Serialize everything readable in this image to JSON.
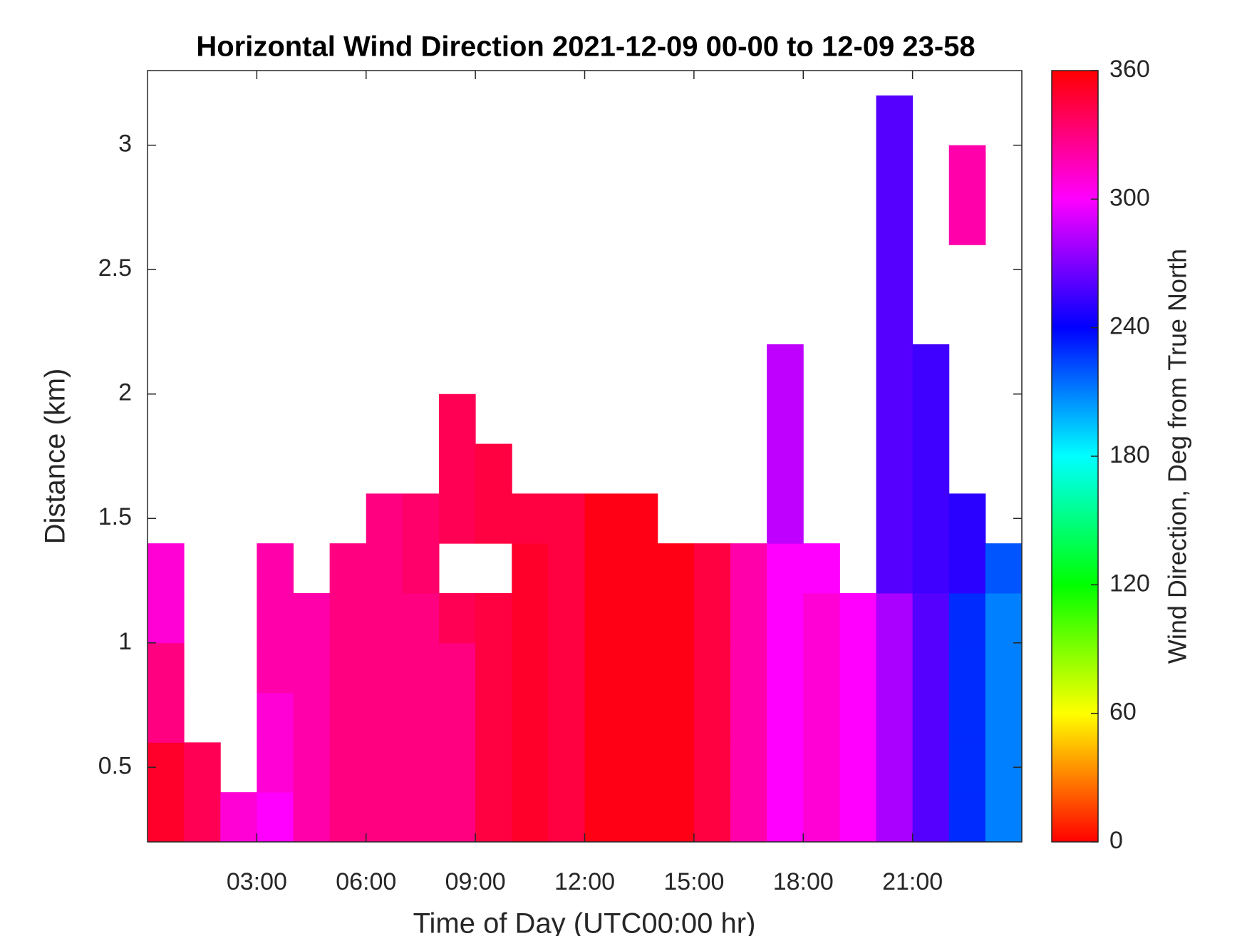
{
  "chart_data": {
    "type": "heatmap",
    "title": "Horizontal Wind Direction 2021-12-09 00-00 to 12-09 23-58",
    "x_label": "Time of Day (UTC00:00 hr)",
    "y_label": "Distance (km)",
    "colorbar_label": "Wind Direction, Deg from True North",
    "colormap": "hsv",
    "xlim": [
      0,
      24
    ],
    "ylim": [
      0.2,
      3.3
    ],
    "clim": [
      0,
      360
    ],
    "xticks": [
      {
        "value": 3,
        "label": "03:00"
      },
      {
        "value": 6,
        "label": "06:00"
      },
      {
        "value": 9,
        "label": "09:00"
      },
      {
        "value": 12,
        "label": "12:00"
      },
      {
        "value": 15,
        "label": "15:00"
      },
      {
        "value": 18,
        "label": "18:00"
      },
      {
        "value": 21,
        "label": "21:00"
      }
    ],
    "yticks": [
      0.5,
      1,
      1.5,
      2,
      2.5,
      3
    ],
    "cticks": [
      0,
      60,
      120,
      180,
      240,
      300,
      360
    ],
    "xbins": [
      0,
      1,
      2,
      3,
      4,
      5,
      6,
      7,
      8,
      9,
      10,
      11,
      12,
      13,
      14,
      15,
      16,
      17,
      18,
      19,
      20,
      21,
      22,
      23,
      24
    ],
    "ybins": [
      0.2,
      0.4,
      0.6,
      0.8,
      1.0,
      1.2,
      1.4,
      1.6,
      1.8,
      2.0,
      2.2,
      2.4,
      2.6,
      2.8,
      3.0,
      3.2,
      3.3
    ],
    "values": [
      [
        350,
        340,
        310,
        300,
        320,
        330,
        330,
        330,
        330,
        345,
        350,
        345,
        355,
        355,
        355,
        345,
        320,
        300,
        310,
        300,
        280,
        260,
        230,
        210
      ],
      [
        350,
        340,
        null,
        310,
        320,
        330,
        330,
        330,
        330,
        345,
        350,
        345,
        355,
        355,
        355,
        345,
        320,
        300,
        310,
        300,
        280,
        260,
        230,
        210
      ],
      [
        330,
        null,
        null,
        310,
        320,
        330,
        330,
        330,
        330,
        345,
        350,
        345,
        355,
        355,
        355,
        345,
        320,
        300,
        310,
        300,
        280,
        260,
        230,
        210
      ],
      [
        330,
        null,
        null,
        320,
        320,
        330,
        330,
        330,
        330,
        345,
        350,
        345,
        355,
        355,
        355,
        345,
        320,
        300,
        310,
        300,
        280,
        260,
        230,
        210
      ],
      [
        310,
        null,
        null,
        320,
        320,
        330,
        330,
        330,
        340,
        345,
        350,
        345,
        355,
        355,
        355,
        345,
        320,
        300,
        310,
        300,
        280,
        260,
        230,
        210
      ],
      [
        310,
        null,
        null,
        320,
        null,
        330,
        330,
        335,
        null,
        null,
        350,
        345,
        355,
        355,
        355,
        345,
        320,
        300,
        300,
        null,
        260,
        255,
        250,
        220
      ],
      [
        null,
        null,
        null,
        null,
        null,
        null,
        330,
        335,
        340,
        345,
        345,
        345,
        355,
        355,
        null,
        null,
        null,
        285,
        null,
        null,
        260,
        255,
        250,
        null
      ],
      [
        null,
        null,
        null,
        null,
        null,
        null,
        null,
        null,
        340,
        345,
        null,
        null,
        null,
        null,
        null,
        null,
        null,
        285,
        null,
        null,
        260,
        255,
        null,
        null
      ],
      [
        null,
        null,
        null,
        null,
        null,
        null,
        null,
        null,
        340,
        null,
        null,
        null,
        null,
        null,
        null,
        null,
        null,
        285,
        null,
        null,
        260,
        255,
        null,
        null
      ],
      [
        null,
        null,
        null,
        null,
        null,
        null,
        null,
        null,
        null,
        null,
        null,
        null,
        null,
        null,
        null,
        null,
        null,
        285,
        null,
        null,
        260,
        255,
        null,
        null
      ],
      [
        null,
        null,
        null,
        null,
        null,
        null,
        null,
        null,
        null,
        null,
        null,
        null,
        null,
        null,
        null,
        null,
        null,
        null,
        null,
        null,
        260,
        null,
        null,
        null
      ],
      [
        null,
        null,
        null,
        null,
        null,
        null,
        null,
        null,
        null,
        null,
        null,
        null,
        null,
        null,
        null,
        null,
        null,
        null,
        null,
        null,
        260,
        null,
        null,
        null
      ],
      [
        null,
        null,
        null,
        null,
        null,
        null,
        null,
        null,
        null,
        null,
        null,
        null,
        null,
        null,
        null,
        null,
        null,
        null,
        null,
        null,
        260,
        null,
        320,
        null
      ],
      [
        null,
        null,
        null,
        null,
        null,
        null,
        null,
        null,
        null,
        null,
        null,
        null,
        null,
        null,
        null,
        null,
        null,
        null,
        null,
        null,
        260,
        null,
        320,
        null
      ],
      [
        null,
        null,
        null,
        null,
        null,
        null,
        null,
        null,
        null,
        null,
        null,
        null,
        null,
        null,
        null,
        null,
        null,
        null,
        null,
        null,
        260,
        null,
        null,
        null
      ],
      [
        null,
        null,
        null,
        null,
        null,
        null,
        null,
        null,
        null,
        null,
        null,
        null,
        null,
        null,
        null,
        null,
        null,
        null,
        null,
        null,
        null,
        null,
        null,
        null
      ]
    ]
  }
}
